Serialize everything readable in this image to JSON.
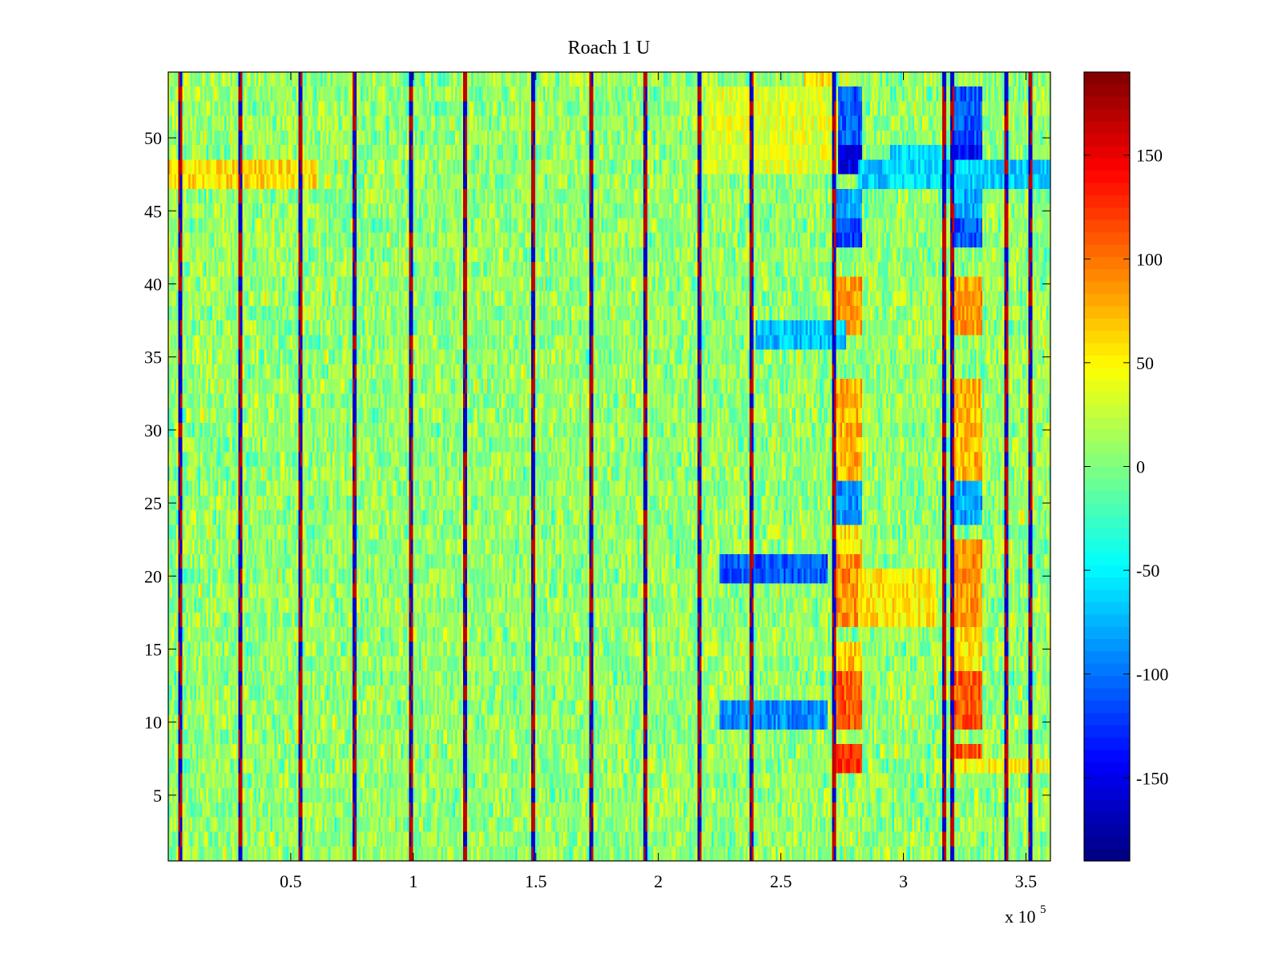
{
  "chart_data": {
    "type": "heatmap",
    "title": "Roach 1 U",
    "xlabel": "",
    "ylabel": "",
    "colormap": "jet",
    "x_multiplier_label": "x 10",
    "x_multiplier_exponent": "5",
    "xlim": [
      0,
      3.6
    ],
    "ylim": [
      0.5,
      54.5
    ],
    "xticks": [
      0.5,
      1,
      1.5,
      2,
      2.5,
      3,
      3.5
    ],
    "xtick_labels": [
      "0.5",
      "1",
      "1.5",
      "2",
      "2.5",
      "3",
      "3.5"
    ],
    "yticks": [
      5,
      10,
      15,
      20,
      25,
      30,
      35,
      40,
      45,
      50
    ],
    "ytick_labels": [
      "5",
      "10",
      "15",
      "20",
      "25",
      "30",
      "35",
      "40",
      "45",
      "50"
    ],
    "n_rows": 54,
    "colorbar": {
      "clim": [
        -190,
        190
      ],
      "ticks": [
        -150,
        -100,
        -50,
        0,
        50,
        100,
        150
      ],
      "tick_labels": [
        "-150",
        "-100",
        "-50",
        "0",
        "50",
        "100",
        "150"
      ]
    },
    "background_noise_range": [
      -60,
      60
    ],
    "vertical_artifact_stripes_x": [
      0.04,
      0.29,
      0.53,
      0.75,
      0.98,
      1.2,
      1.48,
      1.72,
      1.94,
      2.16,
      2.37,
      2.71,
      3.16,
      3.19,
      3.41,
      3.51
    ],
    "feature_blocks": [
      {
        "x_range": [
          2.72,
          2.82
        ],
        "rows": [
          7,
          8
        ],
        "value": 120
      },
      {
        "x_range": [
          2.72,
          2.82
        ],
        "rows": [
          10,
          13
        ],
        "value": 110
      },
      {
        "x_range": [
          2.72,
          2.82
        ],
        "rows": [
          14,
          15
        ],
        "value": 70
      },
      {
        "x_range": [
          2.72,
          2.82
        ],
        "rows": [
          17,
          21
        ],
        "value": 90
      },
      {
        "x_range": [
          2.72,
          2.82
        ],
        "rows": [
          22,
          23
        ],
        "value": 55
      },
      {
        "x_range": [
          2.72,
          2.82
        ],
        "rows": [
          24,
          26
        ],
        "value": -90
      },
      {
        "x_range": [
          2.72,
          2.82
        ],
        "rows": [
          27,
          33
        ],
        "value": 75
      },
      {
        "x_range": [
          2.72,
          2.82
        ],
        "rows": [
          37,
          40
        ],
        "value": 85
      },
      {
        "x_range": [
          2.72,
          2.82
        ],
        "rows": [
          43,
          44
        ],
        "value": -120
      },
      {
        "x_range": [
          2.72,
          2.82
        ],
        "rows": [
          45,
          46
        ],
        "value": -80
      },
      {
        "x_range": [
          2.72,
          2.82
        ],
        "rows": [
          48,
          49
        ],
        "value": -150
      },
      {
        "x_range": [
          2.72,
          2.82
        ],
        "rows": [
          50,
          53
        ],
        "value": -110
      },
      {
        "x_range": [
          3.21,
          3.31
        ],
        "rows": [
          7,
          8
        ],
        "value": 115
      },
      {
        "x_range": [
          3.21,
          3.31
        ],
        "rows": [
          10,
          13
        ],
        "value": 110
      },
      {
        "x_range": [
          3.21,
          3.31
        ],
        "rows": [
          14,
          16
        ],
        "value": 60
      },
      {
        "x_range": [
          3.21,
          3.31
        ],
        "rows": [
          17,
          22
        ],
        "value": 85
      },
      {
        "x_range": [
          3.21,
          3.31
        ],
        "rows": [
          24,
          26
        ],
        "value": -80
      },
      {
        "x_range": [
          3.21,
          3.31
        ],
        "rows": [
          27,
          33
        ],
        "value": 75
      },
      {
        "x_range": [
          3.21,
          3.31
        ],
        "rows": [
          37,
          40
        ],
        "value": 85
      },
      {
        "x_range": [
          3.21,
          3.31
        ],
        "rows": [
          43,
          44
        ],
        "value": -110
      },
      {
        "x_range": [
          3.21,
          3.31
        ],
        "rows": [
          45,
          46
        ],
        "value": -80
      },
      {
        "x_range": [
          3.21,
          3.31
        ],
        "rows": [
          48,
          49
        ],
        "value": -140
      },
      {
        "x_range": [
          3.21,
          3.31
        ],
        "rows": [
          50,
          53
        ],
        "value": -110
      },
      {
        "x_range": [
          2.82,
          3.12
        ],
        "rows": [
          17,
          20
        ],
        "value": 55
      },
      {
        "x_range": [
          2.25,
          2.68
        ],
        "rows": [
          20,
          21
        ],
        "value": -110
      },
      {
        "x_range": [
          2.25,
          2.68
        ],
        "rows": [
          10,
          11
        ],
        "value": -90
      },
      {
        "x_range": [
          2.4,
          2.75
        ],
        "rows": [
          36,
          37
        ],
        "value": -70
      },
      {
        "x_range": [
          2.6,
          2.7
        ],
        "rows": [
          53,
          54
        ],
        "value": 55
      },
      {
        "x_range": [
          0.0,
          0.6
        ],
        "rows": [
          47,
          48
        ],
        "value": 60
      },
      {
        "x_range": [
          2.2,
          2.72
        ],
        "rows": [
          48,
          53
        ],
        "value": 35
      },
      {
        "x_range": [
          2.82,
          3.6
        ],
        "rows": [
          47,
          48
        ],
        "value": -65
      },
      {
        "x_range": [
          3.18,
          3.6
        ],
        "rows": [
          7,
          7
        ],
        "value": 50
      },
      {
        "x_range": [
          2.95,
          3.15
        ],
        "rows": [
          47,
          49
        ],
        "value": -60
      }
    ]
  }
}
